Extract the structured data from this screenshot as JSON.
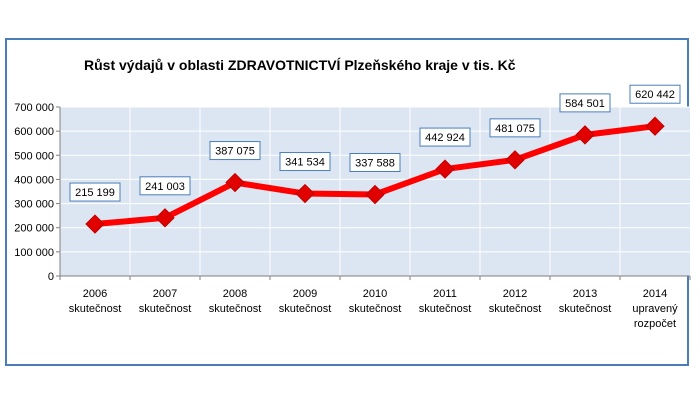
{
  "chart_data": {
    "type": "line",
    "title": "Růst  výdajů v oblasti ZDRAVOTNICTVÍ Plzeňského kraje v tis. Kč",
    "categories": [
      [
        "2006",
        "skutečnost"
      ],
      [
        "2007",
        "skutečnost"
      ],
      [
        "2008",
        "skutečnost"
      ],
      [
        "2009",
        "skutečnost"
      ],
      [
        "2010",
        "skutečnost"
      ],
      [
        "2011",
        "skutečnost"
      ],
      [
        "2012",
        "skutečnost"
      ],
      [
        "2013",
        "skutečnost"
      ],
      [
        "2014",
        "upravený",
        "rozpočet"
      ]
    ],
    "values": [
      215199,
      241003,
      387075,
      341534,
      337588,
      442924,
      481075,
      584501,
      620442
    ],
    "value_labels": [
      "215 199",
      "241 003",
      "387 075",
      "341 534",
      "337 588",
      "442 924",
      "481 075",
      "584 501",
      "620 442"
    ],
    "yticks": [
      0,
      100000,
      200000,
      300000,
      400000,
      500000,
      600000,
      700000
    ],
    "ytick_labels": [
      "0",
      "100 000",
      "200 000",
      "300 000",
      "400 000",
      "500 000",
      "600 000",
      "700 000"
    ],
    "ylim": [
      0,
      700000
    ],
    "xlabel": "",
    "ylabel": "",
    "grid": true,
    "legend": "none",
    "colors": {
      "line": "#ff0000",
      "marker": "#e00000",
      "plot_bg": "#dce6f2",
      "grid": "#ffffff",
      "frame": "#4a7ebb",
      "label_border": "#4a7ebb"
    }
  }
}
